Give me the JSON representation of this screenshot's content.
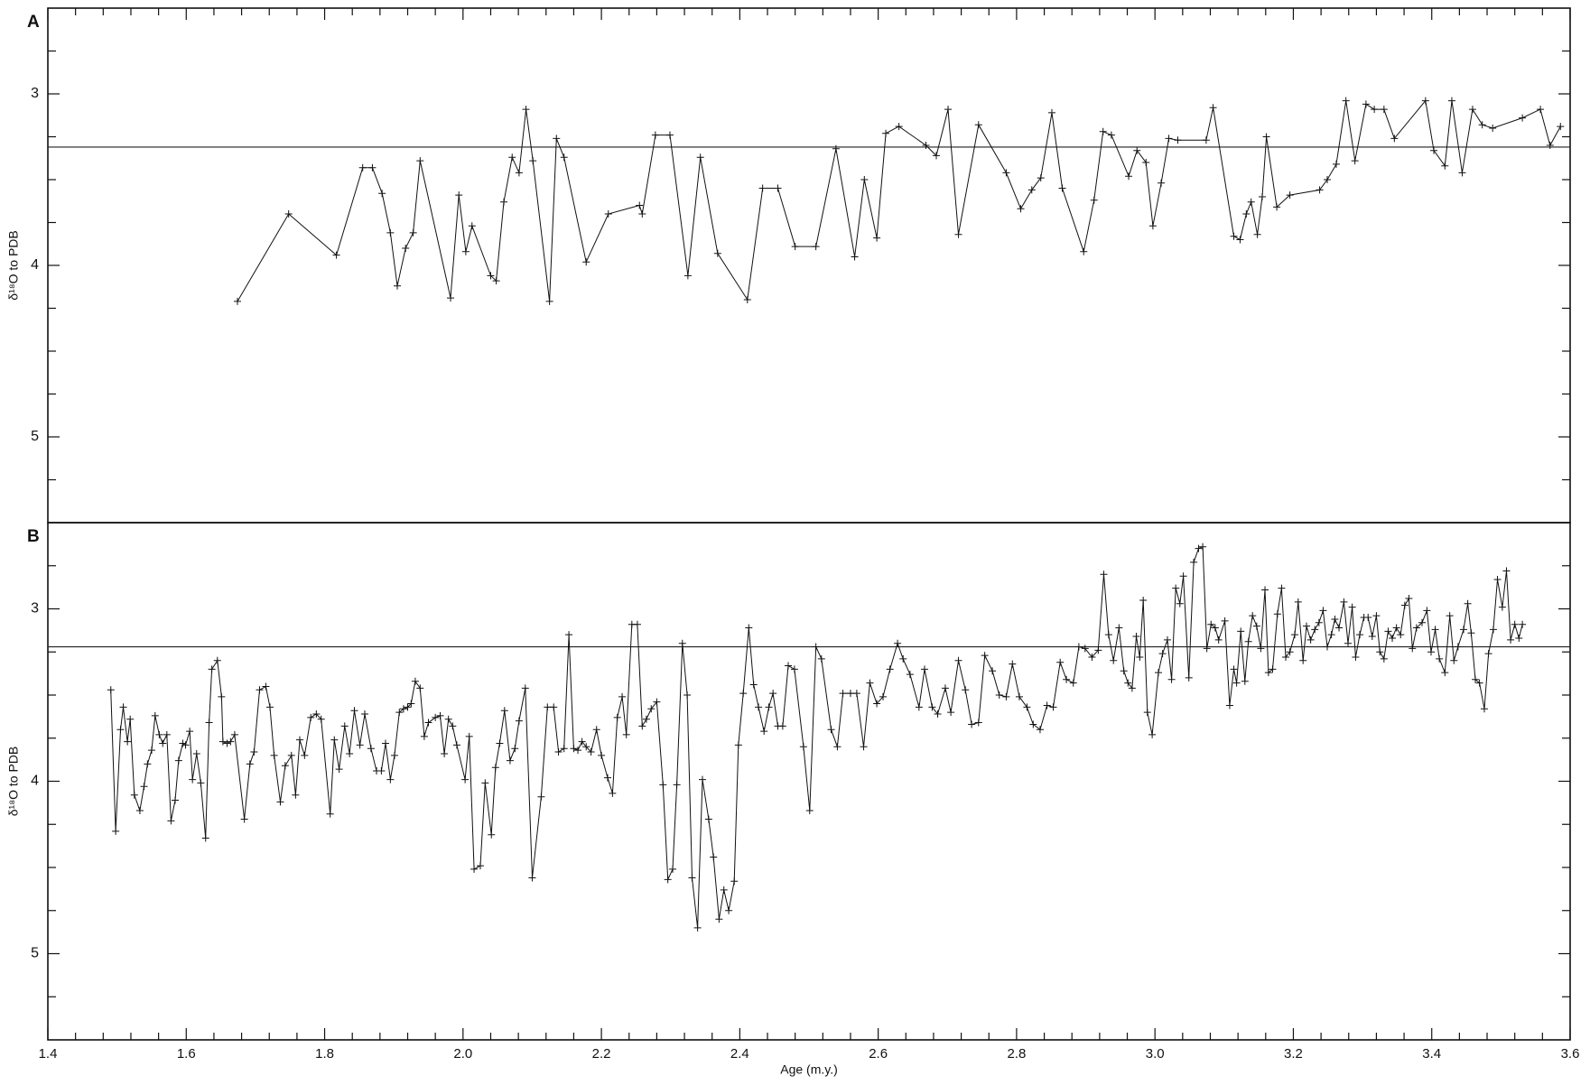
{
  "chart_data": [
    {
      "type": "line",
      "panel_label": "A",
      "y_label": "δ¹⁸O to PDB",
      "xlim": [
        1.4,
        3.6
      ],
      "xticks": [
        1.4,
        1.6,
        1.8,
        2,
        2.2,
        2.4,
        2.6,
        2.8,
        3,
        3.2,
        3.4,
        3.6
      ],
      "xminor_per_major": 5,
      "ylim": [
        5.5,
        2.5
      ],
      "yticks": [
        3,
        4,
        5
      ],
      "yminor_per_major": 4,
      "reference_line": 3.31,
      "color": "#111111",
      "marker": "+",
      "x": [
        1.674,
        1.748,
        1.817,
        1.855,
        1.869,
        1.883,
        1.895,
        1.905,
        1.917,
        1.928,
        1.938,
        1.982,
        1.994,
        2.004,
        2.013,
        2.04,
        2.048,
        2.059,
        2.071,
        2.081,
        2.091,
        2.101,
        2.125,
        2.135,
        2.146,
        2.178,
        2.21,
        2.255,
        2.259,
        2.278,
        2.299,
        2.325,
        2.343,
        2.368,
        2.411,
        2.433,
        2.455,
        2.48,
        2.51,
        2.539,
        2.566,
        2.58,
        2.598,
        2.611,
        2.63,
        2.669,
        2.684,
        2.701,
        2.716,
        2.745,
        2.785,
        2.806,
        2.822,
        2.835,
        2.851,
        2.866,
        2.897,
        2.912,
        2.925,
        2.937,
        2.962,
        2.974,
        2.987,
        2.997,
        3.009,
        3.02,
        3.033,
        3.074,
        3.084,
        3.114,
        3.123,
        3.132,
        3.139,
        3.148,
        3.155,
        3.161,
        3.176,
        3.195,
        3.238,
        3.249,
        3.262,
        3.276,
        3.289,
        3.305,
        3.317,
        3.331,
        3.346,
        3.391,
        3.403,
        3.419,
        3.429,
        3.444,
        3.459,
        3.473,
        3.488,
        3.531,
        3.557,
        3.571,
        3.586
      ],
      "values": [
        4.21,
        3.7,
        3.94,
        3.43,
        3.43,
        3.58,
        3.81,
        4.12,
        3.9,
        3.81,
        3.39,
        4.19,
        3.59,
        3.92,
        3.77,
        4.06,
        4.09,
        3.63,
        3.37,
        3.46,
        3.09,
        3.39,
        4.21,
        3.26,
        3.37,
        3.98,
        3.7,
        3.65,
        3.7,
        3.24,
        3.24,
        4.06,
        3.37,
        3.93,
        4.2,
        3.55,
        3.55,
        3.89,
        3.89,
        3.32,
        3.95,
        3.5,
        3.84,
        3.23,
        3.19,
        3.3,
        3.36,
        3.09,
        3.82,
        3.18,
        3.46,
        3.67,
        3.56,
        3.49,
        3.11,
        3.55,
        3.92,
        3.62,
        3.22,
        3.24,
        3.48,
        3.33,
        3.4,
        3.77,
        3.52,
        3.26,
        3.27,
        3.27,
        3.08,
        3.83,
        3.85,
        3.7,
        3.63,
        3.82,
        3.6,
        3.25,
        3.66,
        3.59,
        3.56,
        3.5,
        3.41,
        3.04,
        3.39,
        3.06,
        3.09,
        3.09,
        3.26,
        3.04,
        3.33,
        3.42,
        3.04,
        3.46,
        3.09,
        3.18,
        3.2,
        3.14,
        3.09,
        3.3,
        3.19
      ]
    },
    {
      "type": "line",
      "panel_label": "B",
      "y_label": "δ¹⁸O to PDB",
      "x_label": "Age (m.y.)",
      "xlim": [
        1.4,
        3.6
      ],
      "xticks": [
        1.4,
        1.6,
        1.8,
        {
          "value": 2,
          "label": "2.0"
        },
        2.2,
        2.4,
        2.6,
        2.8,
        {
          "value": 3,
          "label": "3.0"
        },
        3.2,
        3.4,
        3.6
      ],
      "xminor_per_major": 5,
      "ylim": [
        5.5,
        2.5
      ],
      "yticks": [
        3,
        4,
        5
      ],
      "yminor_per_major": 4,
      "reference_line": 3.22,
      "color": "#111111",
      "marker": "+",
      "x": [
        1.491,
        1.498,
        1.505,
        1.509,
        1.515,
        1.519,
        1.525,
        1.533,
        1.539,
        1.544,
        1.55,
        1.555,
        1.561,
        1.566,
        1.572,
        1.578,
        1.584,
        1.589,
        1.595,
        1.599,
        1.605,
        1.609,
        1.615,
        1.621,
        1.628,
        1.633,
        1.637,
        1.645,
        1.651,
        1.653,
        1.659,
        1.664,
        1.67,
        1.684,
        1.692,
        1.698,
        1.706,
        1.715,
        1.721,
        1.727,
        1.736,
        1.743,
        1.752,
        1.758,
        1.764,
        1.771,
        1.78,
        1.788,
        1.795,
        1.808,
        1.814,
        1.821,
        1.829,
        1.836,
        1.843,
        1.851,
        1.858,
        1.867,
        1.875,
        1.882,
        1.888,
        1.895,
        1.901,
        1.908,
        1.914,
        1.92,
        1.925,
        1.931,
        1.938,
        1.944,
        1.95,
        1.96,
        1.967,
        1.973,
        1.979,
        1.985,
        1.991,
        2.003,
        2.009,
        2.016,
        2.025,
        2.032,
        2.041,
        2.047,
        2.053,
        2.06,
        2.068,
        2.075,
        2.081,
        2.09,
        2.1,
        2.113,
        2.122,
        2.131,
        2.138,
        2.146,
        2.153,
        2.16,
        2.166,
        2.172,
        2.178,
        2.185,
        2.193,
        2.2,
        2.209,
        2.216,
        2.223,
        2.23,
        2.236,
        2.244,
        2.252,
        2.259,
        2.265,
        2.272,
        2.28,
        2.289,
        2.296,
        2.303,
        2.309,
        2.317,
        2.324,
        2.331,
        2.339,
        2.346,
        2.355,
        2.362,
        2.37,
        2.377,
        2.384,
        2.392,
        2.398,
        2.405,
        2.413,
        2.42,
        2.427,
        2.435,
        2.442,
        2.448,
        2.455,
        2.462,
        2.47,
        2.479,
        2.492,
        2.501,
        2.51,
        2.518,
        2.532,
        2.541,
        2.549,
        2.56,
        2.569,
        2.579,
        2.588,
        2.598,
        2.607,
        2.617,
        2.628,
        2.636,
        2.646,
        2.659,
        2.667,
        2.678,
        2.686,
        2.697,
        2.705,
        2.716,
        2.726,
        2.735,
        2.745,
        2.754,
        2.765,
        2.775,
        2.785,
        2.794,
        2.804,
        2.815,
        2.824,
        2.834,
        2.844,
        2.853,
        2.863,
        2.872,
        2.882,
        2.89,
        2.899,
        2.909,
        2.918,
        2.926,
        2.933,
        2.94,
        2.948,
        2.955,
        2.961,
        2.967,
        2.973,
        2.978,
        2.983,
        2.989,
        2.996,
        3.005,
        3.011,
        3.018,
        3.024,
        3.03,
        3.036,
        3.041,
        3.049,
        3.056,
        3.063,
        3.069,
        3.075,
        3.081,
        3.087,
        3.092,
        3.101,
        3.108,
        3.114,
        3.118,
        3.124,
        3.13,
        3.135,
        3.141,
        3.147,
        3.153,
        3.159,
        3.164,
        3.17,
        3.177,
        3.183,
        3.189,
        3.195,
        3.202,
        3.207,
        3.214,
        3.219,
        3.225,
        3.231,
        3.237,
        3.243,
        3.249,
        3.255,
        3.26,
        3.266,
        3.273,
        3.279,
        3.285,
        3.29,
        3.296,
        3.302,
        3.308,
        3.314,
        3.32,
        3.325,
        3.331,
        3.337,
        3.343,
        3.349,
        3.355,
        3.361,
        3.367,
        3.372,
        3.378,
        3.386,
        3.393,
        3.399,
        3.405,
        3.411,
        3.419,
        3.426,
        3.432,
        3.438,
        3.446,
        3.452,
        3.457,
        3.463,
        3.469,
        3.476,
        3.482,
        3.489,
        3.495,
        3.502,
        3.508,
        3.514,
        3.52,
        3.526,
        3.531
      ],
      "values": [
        3.47,
        4.29,
        3.7,
        3.57,
        3.77,
        3.64,
        4.08,
        4.17,
        4.03,
        3.9,
        3.82,
        3.62,
        3.73,
        3.78,
        3.73,
        4.23,
        4.11,
        3.88,
        3.78,
        3.79,
        3.71,
        3.99,
        3.84,
        4.01,
        4.33,
        3.66,
        3.35,
        3.3,
        3.51,
        3.77,
        3.78,
        3.77,
        3.73,
        4.22,
        3.9,
        3.83,
        3.47,
        3.45,
        3.57,
        3.85,
        4.12,
        3.91,
        3.85,
        4.08,
        3.76,
        3.85,
        3.63,
        3.61,
        3.64,
        4.19,
        3.76,
        3.93,
        3.68,
        3.84,
        3.59,
        3.79,
        3.61,
        3.81,
        3.94,
        3.94,
        3.78,
        3.99,
        3.85,
        3.6,
        3.58,
        3.57,
        3.55,
        3.42,
        3.46,
        3.74,
        3.66,
        3.63,
        3.62,
        3.84,
        3.64,
        3.68,
        3.79,
        3.99,
        3.74,
        4.51,
        4.49,
        4.01,
        4.31,
        3.92,
        3.78,
        3.59,
        3.88,
        3.81,
        3.65,
        3.46,
        4.56,
        4.09,
        3.57,
        3.57,
        3.83,
        3.81,
        3.15,
        3.81,
        3.82,
        3.77,
        3.8,
        3.83,
        3.7,
        3.85,
        3.98,
        4.07,
        3.63,
        3.51,
        3.73,
        3.09,
        3.09,
        3.68,
        3.64,
        3.58,
        3.54,
        4.02,
        4.57,
        4.51,
        4.02,
        3.2,
        3.5,
        4.56,
        4.85,
        3.99,
        4.22,
        4.44,
        4.8,
        4.63,
        4.75,
        4.58,
        3.79,
        3.49,
        3.11,
        3.44,
        3.57,
        3.71,
        3.57,
        3.49,
        3.68,
        3.68,
        3.33,
        3.35,
        3.8,
        4.17,
        3.22,
        3.29,
        3.7,
        3.8,
        3.49,
        3.49,
        3.49,
        3.8,
        3.43,
        3.55,
        3.51,
        3.35,
        3.2,
        3.29,
        3.38,
        3.57,
        3.35,
        3.57,
        3.61,
        3.46,
        3.6,
        3.3,
        3.47,
        3.67,
        3.66,
        3.27,
        3.36,
        3.5,
        3.51,
        3.32,
        3.51,
        3.57,
        3.67,
        3.7,
        3.56,
        3.57,
        3.31,
        3.41,
        3.43,
        3.22,
        3.23,
        3.28,
        3.24,
        2.8,
        3.15,
        3.3,
        3.11,
        3.36,
        3.43,
        3.46,
        3.16,
        3.28,
        2.95,
        3.6,
        3.73,
        3.37,
        3.26,
        3.18,
        3.41,
        2.88,
        2.97,
        2.81,
        3.4,
        2.73,
        2.65,
        2.64,
        3.23,
        3.09,
        3.11,
        3.18,
        3.07,
        3.56,
        3.35,
        3.43,
        3.13,
        3.42,
        3.19,
        3.04,
        3.1,
        3.23,
        2.89,
        3.37,
        3.35,
        3.03,
        2.88,
        3.28,
        3.25,
        3.15,
        2.96,
        3.3,
        3.1,
        3.18,
        3.12,
        3.08,
        3.01,
        3.22,
        3.15,
        3.06,
        3.11,
        2.96,
        3.2,
        2.99,
        3.28,
        3.15,
        3.05,
        3.05,
        3.16,
        3.04,
        3.25,
        3.29,
        3.13,
        3.17,
        3.11,
        3.15,
        2.98,
        2.94,
        3.23,
        3.11,
        3.08,
        3.01,
        3.25,
        3.12,
        3.29,
        3.37,
        3.04,
        3.3,
        3.22,
        3.12,
        2.97,
        3.14,
        3.41,
        3.43,
        3.58,
        3.26,
        3.12,
        2.83,
        2.99,
        2.78,
        3.18,
        3.09,
        3.17,
        3.09
      ]
    }
  ]
}
